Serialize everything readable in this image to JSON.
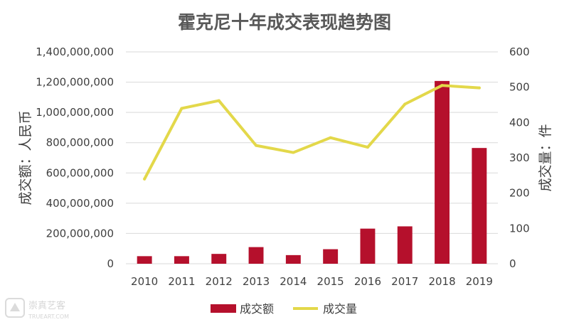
{
  "chart_data": {
    "type": "bar",
    "title": "霍克尼十年成交表现趋势图",
    "categories": [
      "2010",
      "2011",
      "2012",
      "2013",
      "2014",
      "2015",
      "2016",
      "2017",
      "2018",
      "2019"
    ],
    "series": [
      {
        "name": "成交额",
        "chart_type": "bar",
        "axis": "left",
        "color": "#b5102c",
        "values": [
          50000000,
          50000000,
          65000000,
          110000000,
          57000000,
          96000000,
          232000000,
          247000000,
          1208000000,
          765000000
        ]
      },
      {
        "name": "成交量",
        "chart_type": "line",
        "axis": "right",
        "color": "#e3d84a",
        "values": [
          240,
          440,
          462,
          335,
          315,
          357,
          330,
          452,
          505,
          498
        ]
      }
    ],
    "ylabel": "成交额：人民币",
    "y2label": "成交量：件",
    "ylim": [
      0,
      1400000000
    ],
    "y2lim": [
      0,
      600
    ],
    "yticks": [
      "0",
      "200,000,000",
      "400,000,000",
      "600,000,000",
      "800,000,000",
      "1,000,000,000",
      "1,200,000,000",
      "1,400,000,000"
    ],
    "y2ticks": [
      "0",
      "100",
      "200",
      "300",
      "400",
      "500",
      "600"
    ],
    "grid": true,
    "legend_position": "bottom"
  },
  "watermark": {
    "text_cn": "崇真艺客",
    "text_en": "TRUEART.COM"
  }
}
